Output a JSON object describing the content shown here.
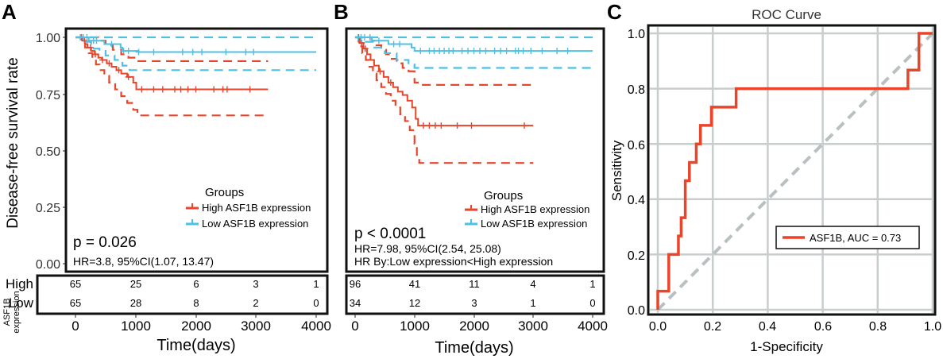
{
  "colors": {
    "high": "#e8452a",
    "low": "#4ec0e4",
    "diag": "#b9c0c2",
    "grid": "#c8cdce",
    "axis": "#1a1a1a"
  },
  "panels": {
    "a": "A",
    "b": "B",
    "c": "C"
  },
  "km_common": {
    "ylabel": "Disease-free survival rate",
    "xlabel": "Time(days)",
    "yticks": [
      "1.00",
      "0.75",
      "0.50",
      "0.25",
      "0.00"
    ],
    "xticks": [
      "0",
      "1000",
      "2000",
      "3000",
      "4000"
    ],
    "legend_title": "Groups",
    "legend_high": "High ASF1B expression",
    "legend_low": "Low ASF1B expression",
    "risk_title": "ASF1B",
    "risk_subtitle": "expression",
    "risk_high": "High",
    "risk_low": "Low"
  },
  "km_a": {
    "pvalue": "p = 0.026",
    "hr": "HR=3.8, 95%CI(1.07, 13.47)",
    "risk_high": [
      "65",
      "25",
      "6",
      "3",
      "1"
    ],
    "risk_low": [
      "65",
      "28",
      "8",
      "2",
      "0"
    ]
  },
  "km_b": {
    "pvalue": "p < 0.0001",
    "hr": "HR=7.98, 95%CI(2.54, 25.08)",
    "hr_by": "HR By:Low expression<High expression",
    "risk_high": [
      "96",
      "41",
      "11",
      "4",
      "1"
    ],
    "risk_low": [
      "34",
      "12",
      "3",
      "1",
      "0"
    ]
  },
  "roc": {
    "title": "ROC Curve",
    "xlabel": "1-Specificity",
    "ylabel": "Sensitivity",
    "xticks": [
      "0.0",
      "0.2",
      "0.4",
      "0.6",
      "0.8",
      "1.0"
    ],
    "yticks": [
      "1.0",
      "0.8",
      "0.6",
      "0.4",
      "0.2",
      "0.0"
    ],
    "legend": "ASF1B, AUC = 0.73"
  },
  "chart_data": [
    {
      "type": "line",
      "title": "A",
      "xlabel": "Time(days)",
      "ylabel": "Disease-free survival rate",
      "xlim": [
        0,
        4000
      ],
      "ylim": [
        0,
        1
      ],
      "series": [
        {
          "name": "High ASF1B expression",
          "role": "estimate",
          "points": [
            [
              0,
              1
            ],
            [
              80,
              1
            ],
            [
              120,
              0.985
            ],
            [
              160,
              0.97
            ],
            [
              200,
              0.955
            ],
            [
              260,
              0.94
            ],
            [
              320,
              0.925
            ],
            [
              380,
              0.91
            ],
            [
              440,
              0.9
            ],
            [
              520,
              0.885
            ],
            [
              600,
              0.87
            ],
            [
              680,
              0.855
            ],
            [
              760,
              0.84
            ],
            [
              860,
              0.825
            ],
            [
              960,
              0.8
            ],
            [
              1010,
              0.77
            ],
            [
              3200,
              0.77
            ]
          ],
          "censor": [
            100,
            150,
            250,
            330,
            450,
            560,
            720,
            880,
            1100,
            1300,
            1450,
            1650,
            1750,
            1870,
            2000,
            2300,
            2450,
            2520,
            2900
          ]
        },
        {
          "name": "High ASF1B expression",
          "role": "lower",
          "points": [
            [
              0,
              1
            ],
            [
              100,
              0.98
            ],
            [
              160,
              0.955
            ],
            [
              220,
              0.93
            ],
            [
              280,
              0.905
            ],
            [
              340,
              0.88
            ],
            [
              400,
              0.855
            ],
            [
              480,
              0.83
            ],
            [
              560,
              0.8
            ],
            [
              660,
              0.77
            ],
            [
              760,
              0.74
            ],
            [
              860,
              0.71
            ],
            [
              960,
              0.68
            ],
            [
              1030,
              0.655
            ],
            [
              3200,
              0.655
            ]
          ]
        },
        {
          "name": "High ASF1B expression",
          "role": "upper",
          "points": [
            [
              0,
              1
            ],
            [
              300,
              1
            ],
            [
              380,
              0.985
            ],
            [
              500,
              0.965
            ],
            [
              620,
              0.945
            ],
            [
              760,
              0.925
            ],
            [
              880,
              0.91
            ],
            [
              1000,
              0.895
            ],
            [
              3200,
              0.895
            ]
          ]
        },
        {
          "name": "Low ASF1B expression",
          "role": "estimate",
          "points": [
            [
              0,
              1
            ],
            [
              150,
              1
            ],
            [
              220,
              0.985
            ],
            [
              400,
              0.985
            ],
            [
              480,
              0.97
            ],
            [
              700,
              0.97
            ],
            [
              750,
              0.955
            ],
            [
              780,
              0.94
            ],
            [
              1000,
              0.94
            ],
            [
              1050,
              0.935
            ],
            [
              4000,
              0.935
            ]
          ],
          "censor": [
            80,
            130,
            190,
            300,
            350,
            600,
            800,
            880,
            1050,
            1300,
            1780,
            1950,
            2100,
            2500,
            2830,
            2960
          ]
        },
        {
          "name": "Low ASF1B expression",
          "role": "lower",
          "points": [
            [
              0,
              1
            ],
            [
              150,
              0.98
            ],
            [
              260,
              0.95
            ],
            [
              400,
              0.94
            ],
            [
              500,
              0.92
            ],
            [
              650,
              0.9
            ],
            [
              780,
              0.875
            ],
            [
              900,
              0.855
            ],
            [
              4000,
              0.855
            ]
          ]
        },
        {
          "name": "Low ASF1B expression",
          "role": "upper",
          "points": [
            [
              0,
              1
            ],
            [
              4000,
              1
            ]
          ]
        }
      ]
    },
    {
      "type": "line",
      "title": "B",
      "xlabel": "Time(days)",
      "ylabel": "Disease-free survival rate",
      "xlim": [
        0,
        4000
      ],
      "ylim": [
        0,
        1
      ],
      "series": [
        {
          "name": "High ASF1B expression",
          "role": "estimate",
          "points": [
            [
              0,
              1
            ],
            [
              80,
              0.975
            ],
            [
              140,
              0.95
            ],
            [
              200,
              0.925
            ],
            [
              260,
              0.9
            ],
            [
              320,
              0.875
            ],
            [
              400,
              0.85
            ],
            [
              480,
              0.825
            ],
            [
              560,
              0.8
            ],
            [
              640,
              0.78
            ],
            [
              720,
              0.76
            ],
            [
              800,
              0.745
            ],
            [
              880,
              0.72
            ],
            [
              960,
              0.69
            ],
            [
              1020,
              0.64
            ],
            [
              1060,
              0.61
            ],
            [
              3000,
              0.61
            ]
          ],
          "censor": [
            60,
            110,
            170,
            420,
            600,
            1150,
            1250,
            1350,
            1450,
            1720,
            1960,
            2850
          ]
        },
        {
          "name": "High ASF1B expression",
          "role": "lower",
          "points": [
            [
              0,
              1
            ],
            [
              60,
              0.96
            ],
            [
              120,
              0.93
            ],
            [
              180,
              0.9
            ],
            [
              240,
              0.87
            ],
            [
              300,
              0.84
            ],
            [
              360,
              0.81
            ],
            [
              440,
              0.78
            ],
            [
              520,
              0.75
            ],
            [
              600,
              0.72
            ],
            [
              680,
              0.69
            ],
            [
              760,
              0.66
            ],
            [
              840,
              0.63
            ],
            [
              920,
              0.59
            ],
            [
              1000,
              0.53
            ],
            [
              1040,
              0.48
            ],
            [
              1080,
              0.445
            ],
            [
              3000,
              0.445
            ]
          ]
        },
        {
          "name": "High ASF1B expression",
          "role": "upper",
          "points": [
            [
              0,
              1
            ],
            [
              200,
              1
            ],
            [
              280,
              0.985
            ],
            [
              360,
              0.965
            ],
            [
              440,
              0.945
            ],
            [
              520,
              0.925
            ],
            [
              600,
              0.905
            ],
            [
              700,
              0.885
            ],
            [
              800,
              0.865
            ],
            [
              900,
              0.85
            ],
            [
              1000,
              0.8
            ],
            [
              1080,
              0.79
            ],
            [
              3000,
              0.79
            ]
          ]
        },
        {
          "name": "Low ASF1B expression",
          "role": "estimate",
          "points": [
            [
              0,
              1
            ],
            [
              200,
              1
            ],
            [
              280,
              0.985
            ],
            [
              500,
              0.985
            ],
            [
              560,
              0.97
            ],
            [
              900,
              0.97
            ],
            [
              950,
              0.955
            ],
            [
              1000,
              0.94
            ],
            [
              4000,
              0.94
            ]
          ],
          "censor": [
            50,
            100,
            160,
            250,
            400,
            650,
            750,
            1100,
            1250,
            1330,
            1420,
            1500,
            1580,
            1650,
            1800,
            1900,
            2000,
            2100,
            2200,
            2350,
            2450,
            2550,
            2700,
            2750,
            2830,
            2960,
            3150,
            3400,
            3580
          ]
        },
        {
          "name": "Low ASF1B expression",
          "role": "lower",
          "points": [
            [
              0,
              1
            ],
            [
              150,
              0.98
            ],
            [
              300,
              0.955
            ],
            [
              500,
              0.93
            ],
            [
              700,
              0.9
            ],
            [
              900,
              0.88
            ],
            [
              1000,
              0.865
            ],
            [
              4000,
              0.865
            ]
          ]
        },
        {
          "name": "Low ASF1B expression",
          "role": "upper",
          "points": [
            [
              0,
              1
            ],
            [
              4000,
              1
            ]
          ]
        }
      ]
    },
    {
      "type": "line",
      "title": "ROC Curve",
      "xlabel": "1-Specificity",
      "ylabel": "Sensitivity",
      "xlim": [
        0,
        1
      ],
      "ylim": [
        0,
        1
      ],
      "series": [
        {
          "name": "ASF1B, AUC = 0.73",
          "auc": 0.73,
          "points": [
            [
              0,
              0
            ],
            [
              0,
              0.067
            ],
            [
              0.04,
              0.067
            ],
            [
              0.04,
              0.2
            ],
            [
              0.075,
              0.2
            ],
            [
              0.075,
              0.267
            ],
            [
              0.085,
              0.267
            ],
            [
              0.085,
              0.333
            ],
            [
              0.1,
              0.333
            ],
            [
              0.1,
              0.467
            ],
            [
              0.115,
              0.467
            ],
            [
              0.115,
              0.533
            ],
            [
              0.14,
              0.533
            ],
            [
              0.14,
              0.6
            ],
            [
              0.155,
              0.6
            ],
            [
              0.155,
              0.667
            ],
            [
              0.195,
              0.667
            ],
            [
              0.195,
              0.733
            ],
            [
              0.285,
              0.733
            ],
            [
              0.285,
              0.8
            ],
            [
              0.91,
              0.8
            ],
            [
              0.91,
              0.867
            ],
            [
              0.95,
              0.867
            ],
            [
              0.95,
              1
            ],
            [
              1,
              1
            ]
          ]
        },
        {
          "name": "reference",
          "points": [
            [
              0,
              0
            ],
            [
              1,
              1
            ]
          ]
        }
      ]
    }
  ]
}
